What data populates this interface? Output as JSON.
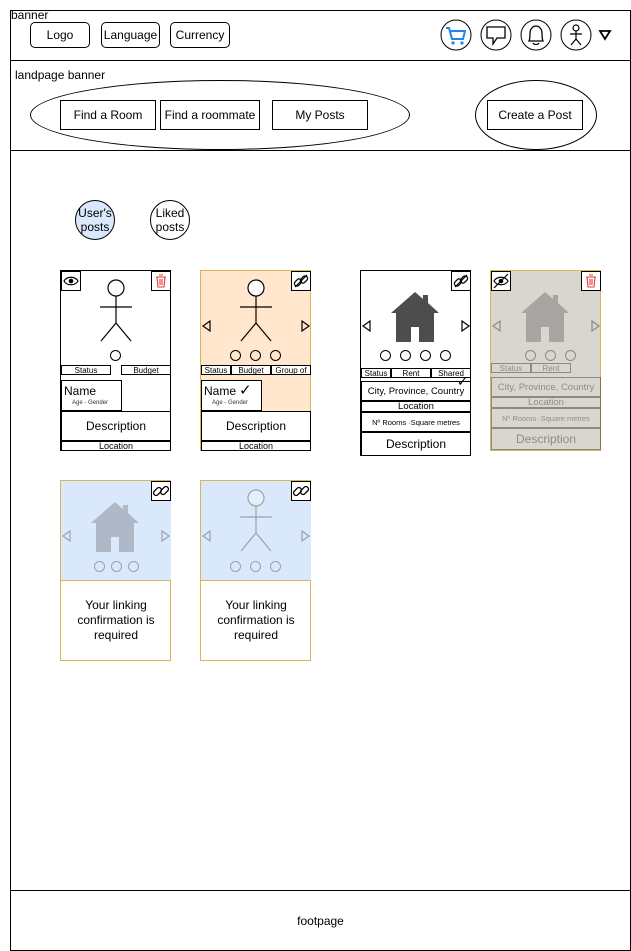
{
  "header": {
    "banner_label": "banner",
    "logo_label": "Logo",
    "language_label": "Language",
    "currency_label": "Currency",
    "icons": [
      "cart-icon",
      "chat-icon",
      "bell-icon",
      "user-icon",
      "dropdown-arrow-icon"
    ]
  },
  "landing": {
    "banner_label": "landpage banner",
    "nav": [
      "Find a Room",
      "Find a roommate",
      "My Posts"
    ],
    "create_post_label": "Create a Post"
  },
  "filters": {
    "users_posts": "User's posts",
    "liked_posts": "Liked posts"
  },
  "cards": {
    "person": {
      "status": "Status",
      "budget": "Budget",
      "group_of": "Group of",
      "name": "Name",
      "age_gender": "Age - Gender",
      "description": "Description",
      "location": "Location"
    },
    "room": {
      "status": "Status",
      "rent": "Rent",
      "shared": "Shared",
      "city": "City, Province, Country",
      "location": "Location",
      "rooms": "Nº Rooms ·Square metres",
      "description": "Description"
    },
    "pending_message": "Your linking confirmation is required"
  },
  "footer": {
    "label": "footpage"
  },
  "colors": {
    "selected_filter": "#dae8fc",
    "highlight_card": "#ffe6cc",
    "faded_card": "#e6e6e6",
    "pending_card": "#dae8fc",
    "gold_border": "#d6b656",
    "cart_blue": "#1e88e5",
    "trash_red": "#e53935"
  }
}
